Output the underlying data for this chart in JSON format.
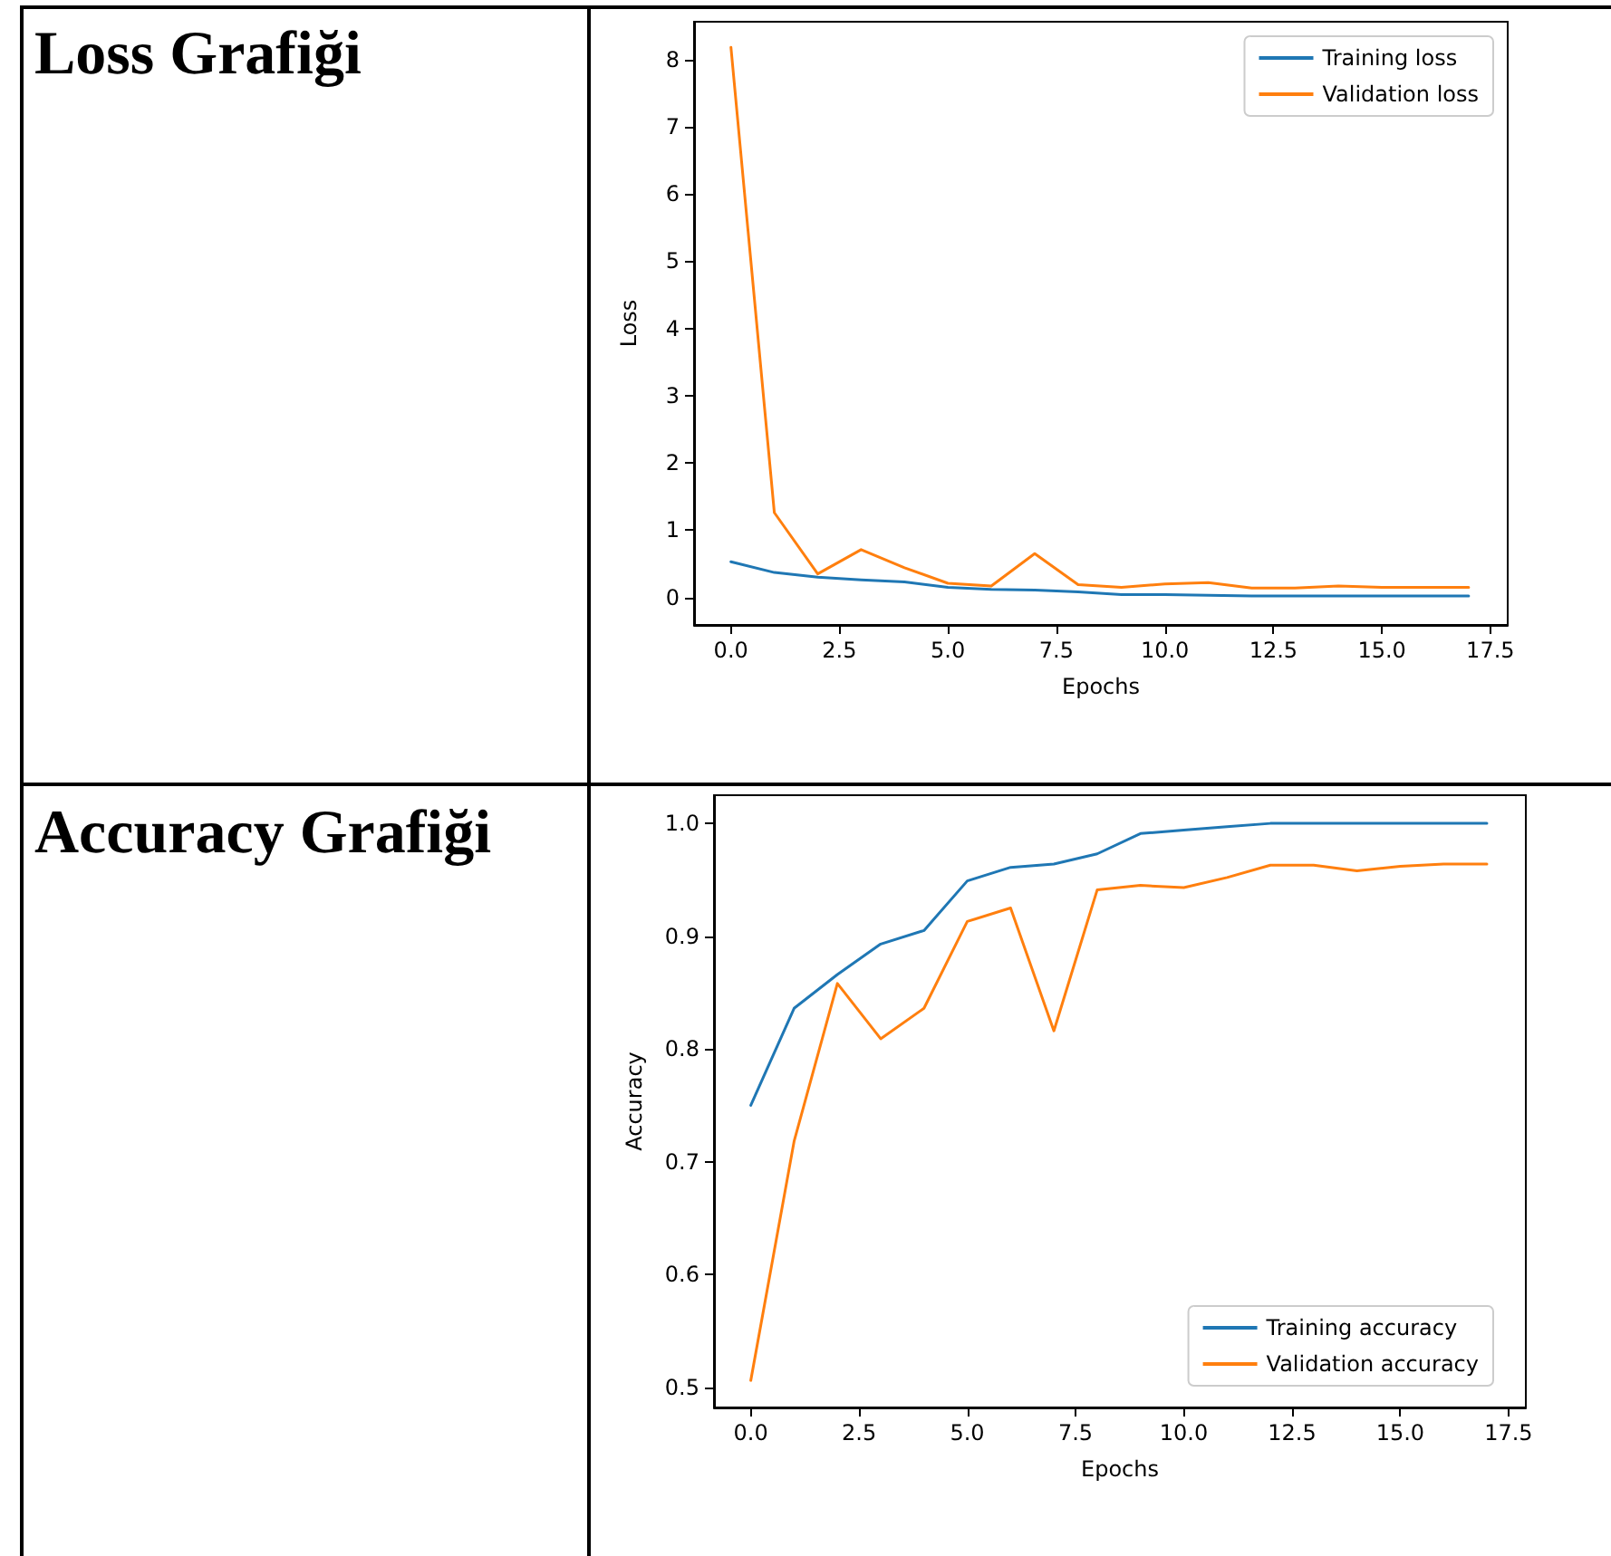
{
  "chart_data": [
    {
      "type": "line",
      "title": "Loss Grafiği",
      "xlabel": "Epochs",
      "ylabel": "Loss",
      "x": [
        0,
        1,
        2,
        3,
        4,
        5,
        6,
        7,
        8,
        9,
        10,
        11,
        12,
        13,
        14,
        15,
        16,
        17
      ],
      "xlim": [
        -0.85,
        17.9
      ],
      "xticks": [
        {
          "value": 0,
          "label": "0.0"
        },
        {
          "value": 2.5,
          "label": "2.5"
        },
        {
          "value": 5,
          "label": "5.0"
        },
        {
          "value": 7.5,
          "label": "7.5"
        },
        {
          "value": 10,
          "label": "10.0"
        },
        {
          "value": 12.5,
          "label": "12.5"
        },
        {
          "value": 15,
          "label": "15.0"
        },
        {
          "value": 17.5,
          "label": "17.5"
        }
      ],
      "ylim": [
        -0.41,
        8.56
      ],
      "yticks": [
        0,
        1,
        2,
        3,
        4,
        5,
        6,
        7,
        8
      ],
      "legend": "top right",
      "grid": false,
      "series": [
        {
          "name": "Training loss",
          "color": "#1f77b4",
          "values": [
            0.53,
            0.37,
            0.3,
            0.26,
            0.23,
            0.15,
            0.12,
            0.11,
            0.08,
            0.04,
            0.04,
            0.03,
            0.02,
            0.02,
            0.02,
            0.02,
            0.02,
            0.02
          ]
        },
        {
          "name": "Validation loss",
          "color": "#ff7f0e",
          "values": [
            8.18,
            1.26,
            0.35,
            0.71,
            0.44,
            0.21,
            0.17,
            0.65,
            0.19,
            0.15,
            0.2,
            0.22,
            0.14,
            0.14,
            0.17,
            0.15,
            0.15,
            0.15
          ]
        }
      ]
    },
    {
      "type": "line",
      "title": "Accuracy Grafiği",
      "xlabel": "Epochs",
      "ylabel": "Accuracy",
      "x": [
        0,
        1,
        2,
        3,
        4,
        5,
        6,
        7,
        8,
        9,
        10,
        11,
        12,
        13,
        14,
        15,
        16,
        17
      ],
      "xlim": [
        -0.85,
        17.9
      ],
      "xticks": [
        {
          "value": 0,
          "label": "0.0"
        },
        {
          "value": 2.5,
          "label": "2.5"
        },
        {
          "value": 5,
          "label": "5.0"
        },
        {
          "value": 7.5,
          "label": "7.5"
        },
        {
          "value": 10,
          "label": "10.0"
        },
        {
          "value": 12.5,
          "label": "12.5"
        },
        {
          "value": 15,
          "label": "15.0"
        },
        {
          "value": 17.5,
          "label": "17.5"
        }
      ],
      "ylim": [
        0.482,
        1.025
      ],
      "yticks": [
        0.5,
        0.6,
        0.7,
        0.8,
        0.9,
        {
          "value": 1,
          "label": "1.0"
        }
      ],
      "legend": "bottom right",
      "grid": false,
      "series": [
        {
          "name": "Training accuracy",
          "color": "#1f77b4",
          "values": [
            0.75,
            0.836,
            0.866,
            0.893,
            0.905,
            0.949,
            0.961,
            0.964,
            0.973,
            0.991,
            0.994,
            0.997,
            1.0,
            1.0,
            1.0,
            1.0,
            1.0,
            1.0
          ]
        },
        {
          "name": "Validation accuracy",
          "color": "#ff7f0e",
          "values": [
            0.506,
            0.718,
            0.858,
            0.809,
            0.836,
            0.913,
            0.925,
            0.816,
            0.941,
            0.945,
            0.943,
            0.952,
            0.963,
            0.963,
            0.958,
            0.962,
            0.964,
            0.964
          ]
        }
      ]
    }
  ]
}
